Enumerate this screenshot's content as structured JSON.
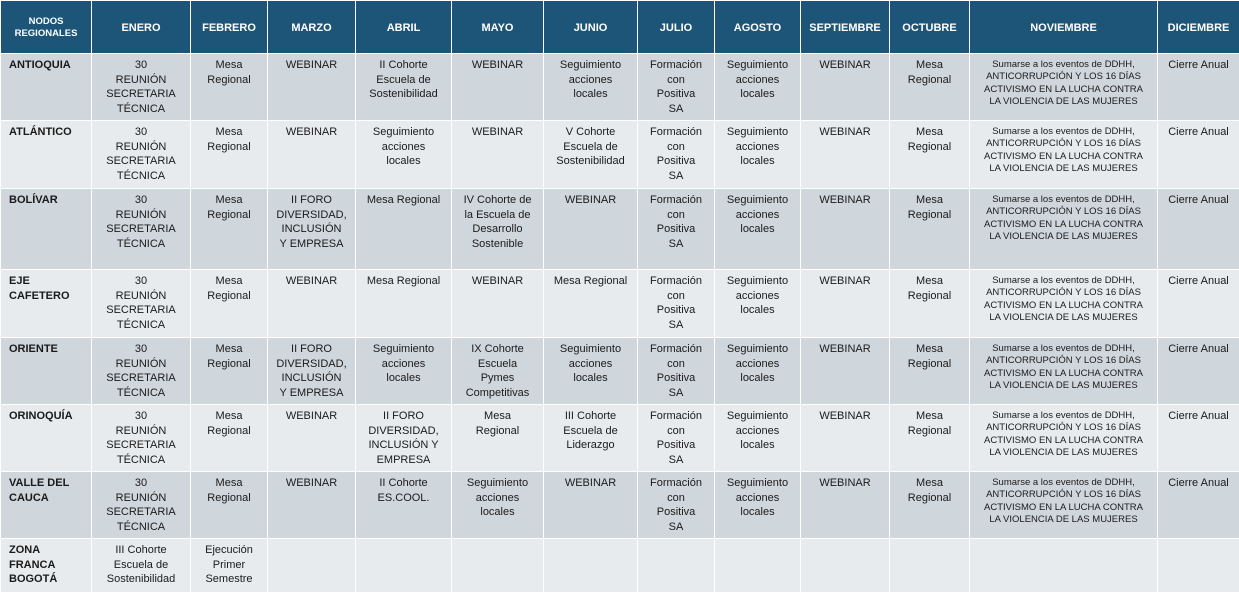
{
  "header": [
    "NODOS\nREGIONALES",
    "ENERO",
    "FEBRERO",
    "MARZO",
    "ABRIL",
    "MAYO",
    "JUNIO",
    "JULIO",
    "AGOSTO",
    "SEPTIEMBRE",
    "OCTUBRE",
    "NOVIEMBRE",
    "DICIEMBRE"
  ],
  "rows": [
    {
      "node": "ANTIOQUIA",
      "cells": [
        "30\nREUNIÓN\nSECRETARIA\nTÉCNICA",
        "Mesa\nRegional",
        "WEBINAR",
        "II Cohorte\nEscuela de\nSostenibilidad",
        "WEBINAR",
        "Seguimiento\nacciones\nlocales",
        "Formación\ncon\nPositiva\nSA",
        "Seguimiento\nacciones\nlocales",
        "WEBINAR",
        "Mesa\nRegional",
        "Sumarse a los eventos de DDHH,\nANTICORRUPCIÓN Y LOS 16 DÍAS\nACTIVISMO EN LA LUCHA CONTRA\nLA VIOLENCIA DE LAS MUJERES",
        "Cierre Anual"
      ]
    },
    {
      "node": "ATLÁNTICO",
      "cells": [
        "30\nREUNIÓN\nSECRETARIA\nTÉCNICA",
        "Mesa\nRegional",
        "WEBINAR",
        "Seguimiento\nacciones\nlocales",
        "WEBINAR",
        "V Cohorte\nEscuela de\nSostenibilidad",
        "Formación\ncon\nPositiva\nSA",
        "Seguimiento\nacciones\nlocales",
        "WEBINAR",
        "Mesa\nRegional",
        "Sumarse a los eventos de DDHH,\nANTICORRUPCIÓN Y LOS 16 DÍAS\nACTIVISMO EN LA LUCHA CONTRA\nLA VIOLENCIA DE LAS MUJERES",
        "Cierre Anual"
      ]
    },
    {
      "node": "BOLÍVAR",
      "cells": [
        "30\nREUNIÓN\nSECRETARIA\nTÉCNICA",
        "Mesa\nRegional",
        "II FORO\nDIVERSIDAD,\nINCLUSIÓN\nY EMPRESA",
        "Mesa Regional",
        "IV Cohorte de\nla Escuela de\nDesarrollo\nSostenible",
        "WEBINAR",
        "Formación\ncon\nPositiva\nSA",
        "Seguimiento\nacciones\nlocales",
        "WEBINAR",
        "Mesa\nRegional",
        "Sumarse a los eventos de DDHH,\nANTICORRUPCIÓN Y LOS 16 DÍAS\nACTIVISMO EN LA LUCHA CONTRA\nLA VIOLENCIA DE LAS MUJERES",
        "Cierre Anual"
      ]
    },
    {
      "node": "EJE\nCAFETERO",
      "cells": [
        "30\nREUNIÓN\nSECRETARIA\nTÉCNICA",
        "Mesa\nRegional",
        "WEBINAR",
        "Mesa Regional",
        "WEBINAR",
        "Mesa Regional",
        "Formación\ncon\nPositiva\nSA",
        "Seguimiento\nacciones\nlocales",
        "WEBINAR",
        "Mesa\nRegional",
        "Sumarse a los eventos de DDHH,\nANTICORRUPCIÓN Y LOS 16 DÍAS\nACTIVISMO EN LA LUCHA CONTRA\nLA VIOLENCIA DE LAS MUJERES",
        "Cierre Anual"
      ]
    },
    {
      "node": "ORIENTE",
      "cells": [
        "30\nREUNIÓN\nSECRETARIA\nTÉCNICA",
        "Mesa\nRegional",
        "II FORO\nDIVERSIDAD,\nINCLUSIÓN\nY EMPRESA",
        "Seguimiento\nacciones\nlocales",
        "IX Cohorte\nEscuela\nPymes\nCompetitivas",
        "Seguimiento\nacciones\nlocales",
        "Formación\ncon\nPositiva\nSA",
        "Seguimiento\nacciones\nlocales",
        "WEBINAR",
        "Mesa\nRegional",
        "Sumarse a los eventos de DDHH,\nANTICORRUPCIÓN Y LOS 16 DÍAS\nACTIVISMO EN LA LUCHA CONTRA\nLA VIOLENCIA DE LAS MUJERES",
        "Cierre Anual"
      ]
    },
    {
      "node": "ORINOQUÍA",
      "cells": [
        "30\nREUNIÓN\nSECRETARIA\nTÉCNICA",
        "Mesa\nRegional",
        "WEBINAR",
        "II FORO\nDIVERSIDAD,\nINCLUSIÓN  Y\nEMPRESA",
        "Mesa\nRegional",
        "III Cohorte\nEscuela de\nLiderazgo",
        "Formación\ncon\nPositiva\nSA",
        "Seguimiento\nacciones\nlocales",
        "WEBINAR",
        "Mesa\nRegional",
        "Sumarse a los eventos de DDHH,\nANTICORRUPCIÓN Y LOS 16 DÍAS\nACTIVISMO EN LA LUCHA CONTRA\nLA VIOLENCIA DE LAS MUJERES",
        "Cierre Anual"
      ]
    },
    {
      "node": "VALLE DEL\nCAUCA",
      "cells": [
        "30\nREUNIÓN\nSECRETARIA\nTÉCNICA",
        "Mesa\nRegional",
        "WEBINAR",
        "II Cohorte\nES.COOL.",
        "Seguimiento\nacciones\nlocales",
        "WEBINAR",
        "Formación\ncon\nPositiva\nSA",
        "Seguimiento\nacciones\nlocales",
        "WEBINAR",
        "Mesa\nRegional",
        "Sumarse a los eventos de DDHH,\nANTICORRUPCIÓN Y LOS 16 DÍAS\nACTIVISMO EN LA LUCHA CONTRA\nLA VIOLENCIA DE LAS MUJERES",
        "Cierre Anual"
      ]
    },
    {
      "node": "ZONA\nFRANCA\nBOGOTÁ",
      "cells": [
        "III Cohorte\nEscuela de\nSostenibilidad",
        "Ejecución\nPrimer\nSemestre",
        "",
        "",
        "",
        "",
        "",
        "",
        "",
        "",
        "",
        ""
      ]
    }
  ],
  "colors": {
    "header_bg": "#1d5578",
    "header_text": "#ffffff",
    "row_dark": "#cfd6dc",
    "row_light": "#e8ebee",
    "border": "#ffffff"
  }
}
